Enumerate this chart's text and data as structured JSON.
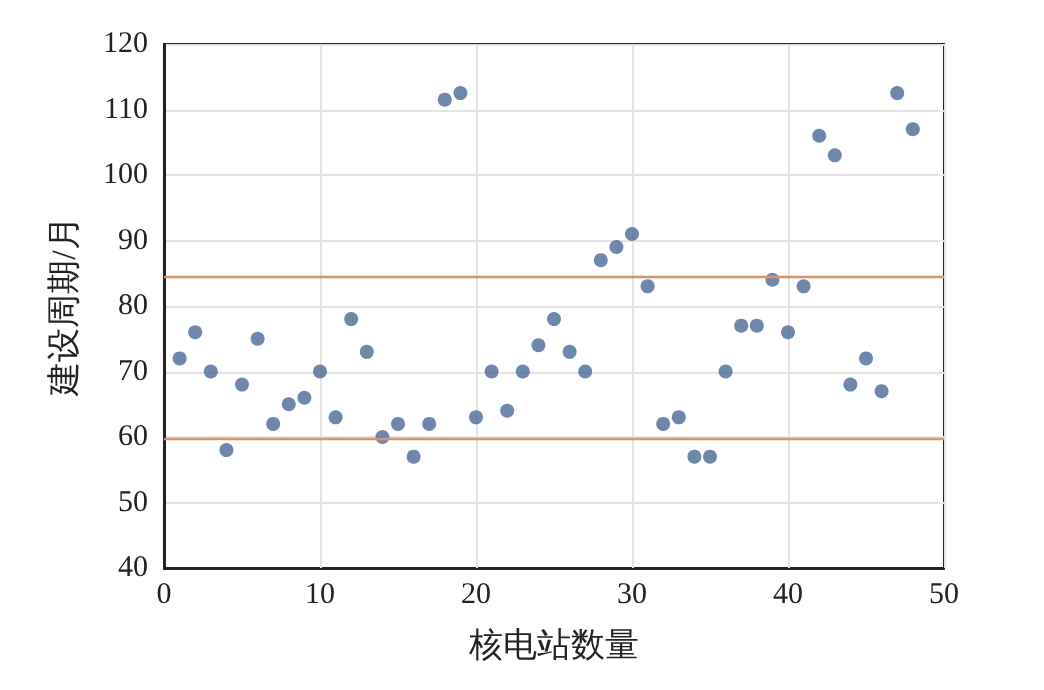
{
  "chart_data": {
    "type": "scatter",
    "xlabel": "核电站数量",
    "ylabel": "建设周期/月",
    "x": [
      1,
      2,
      3,
      4,
      5,
      6,
      7,
      8,
      9,
      10,
      11,
      12,
      13,
      14,
      15,
      16,
      17,
      18,
      19,
      20,
      21,
      22,
      23,
      24,
      25,
      26,
      27,
      28,
      29,
      30,
      31,
      32,
      33,
      34,
      35,
      36,
      37,
      38,
      39,
      40,
      41,
      42,
      43,
      44,
      45,
      46,
      47,
      48
    ],
    "series": [
      {
        "color": "#4a6996",
        "values": [
          72,
          76,
          70,
          58,
          68,
          75,
          62,
          65,
          66,
          70,
          63,
          78,
          73,
          60,
          62,
          57,
          62,
          111.5,
          112.5,
          63,
          70,
          64,
          70,
          74,
          78,
          73,
          70,
          87,
          89,
          91,
          83,
          62,
          63,
          57,
          57,
          70,
          77,
          77,
          84,
          76,
          83,
          106,
          103,
          68,
          72,
          67,
          112.5,
          107
        ]
      }
    ],
    "xlim": [
      0,
      50
    ],
    "xticks": [
      0,
      10,
      20,
      30,
      40,
      50
    ],
    "ylim": [
      40,
      120
    ],
    "yticks": [
      40,
      50,
      60,
      70,
      80,
      90,
      100,
      110,
      120
    ],
    "ref_lines": [
      {
        "axis": "y",
        "value": 84.4,
        "color": "#d9926a"
      },
      {
        "axis": "y",
        "value": 59.7,
        "color": "#d9926a"
      }
    ],
    "grid": true,
    "marker": "circle"
  }
}
